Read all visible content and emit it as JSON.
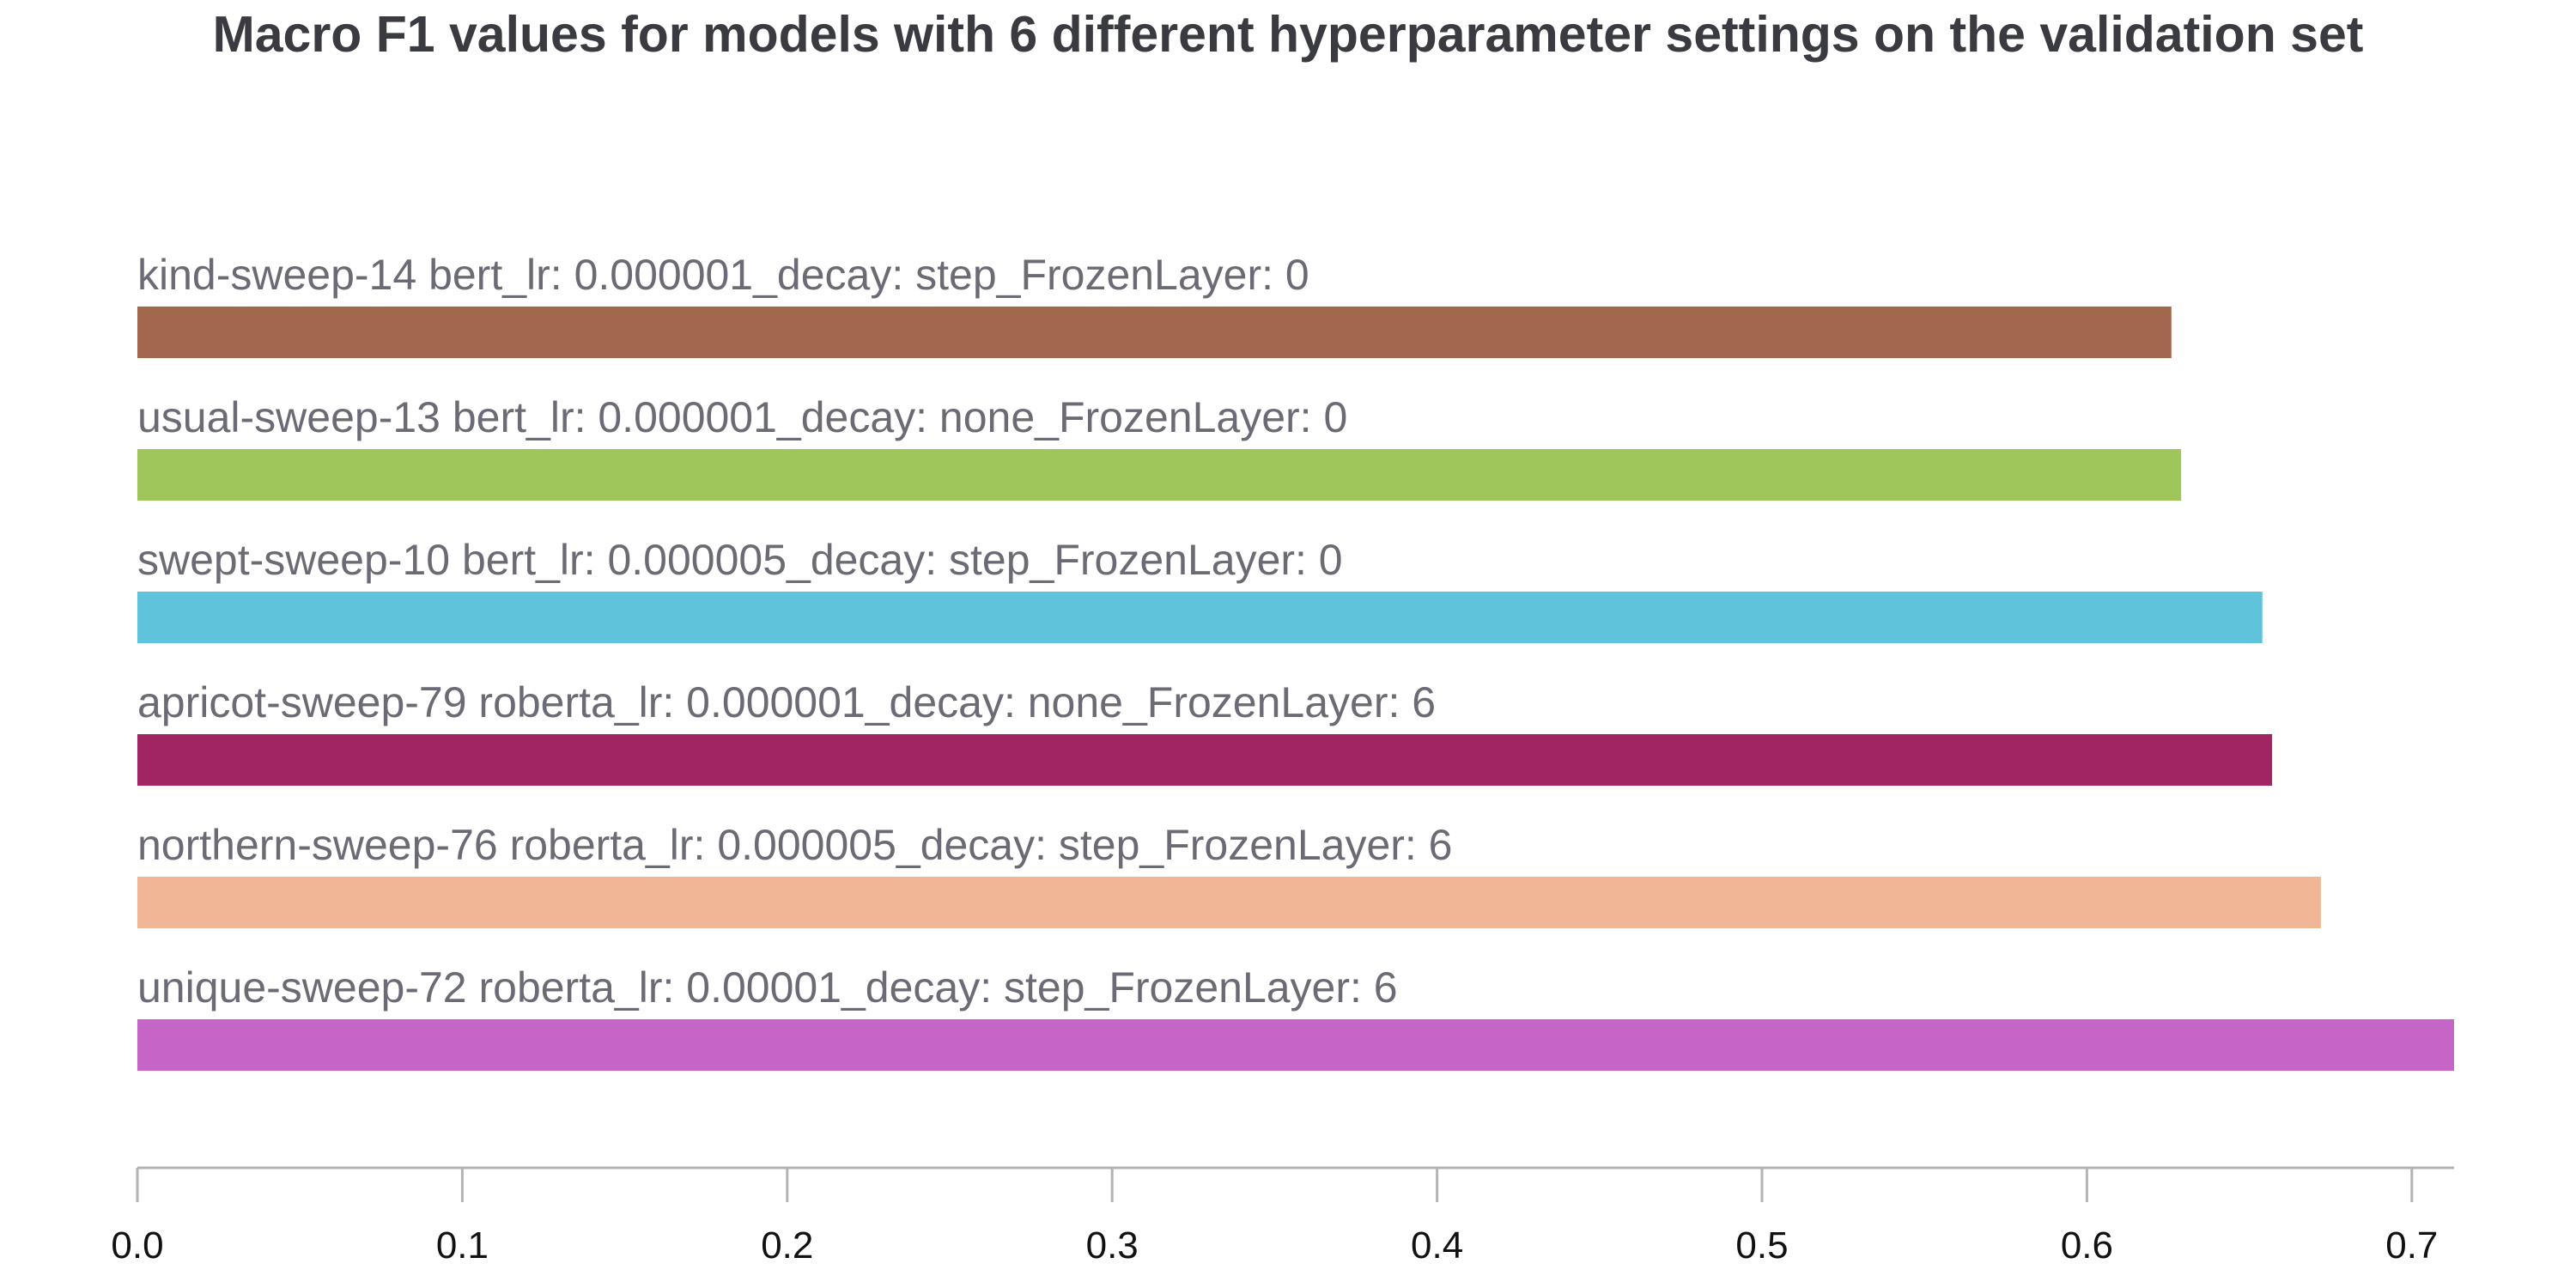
{
  "chart_data": {
    "type": "bar",
    "orientation": "horizontal",
    "title": "Macro F1 values for models with 6 different hyperparameter settings on the validation set",
    "xlabel": "",
    "ylabel": "",
    "xlim": [
      0,
      0.713
    ],
    "xticks": [
      0.0,
      0.1,
      0.2,
      0.3,
      0.4,
      0.5,
      0.6,
      0.7
    ],
    "xtick_labels": [
      "0.0",
      "0.1",
      "0.2",
      "0.3",
      "0.4",
      "0.5",
      "0.6",
      "0.7"
    ],
    "grid": false,
    "categories": [
      "kind-sweep-14 bert_lr: 0.000001_decay: step_FrozenLayer: 0",
      "usual-sweep-13 bert_lr: 0.000001_decay: none_FrozenLayer: 0",
      "swept-sweep-10 bert_lr: 0.000005_decay: step_FrozenLayer: 0",
      "apricot-sweep-79 roberta_lr: 0.000001_decay: none_FrozenLayer: 6",
      "northern-sweep-76 roberta_lr: 0.000005_decay: step_FrozenLayer: 6",
      "unique-sweep-72 roberta_lr: 0.00001_decay: step_FrozenLayer: 6"
    ],
    "values": [
      0.626,
      0.629,
      0.654,
      0.657,
      0.672,
      0.715
    ],
    "colors": [
      "#a2684e",
      "#9fc65b",
      "#5fc3dc",
      "#a12563",
      "#f0b696",
      "#c565c7"
    ]
  }
}
